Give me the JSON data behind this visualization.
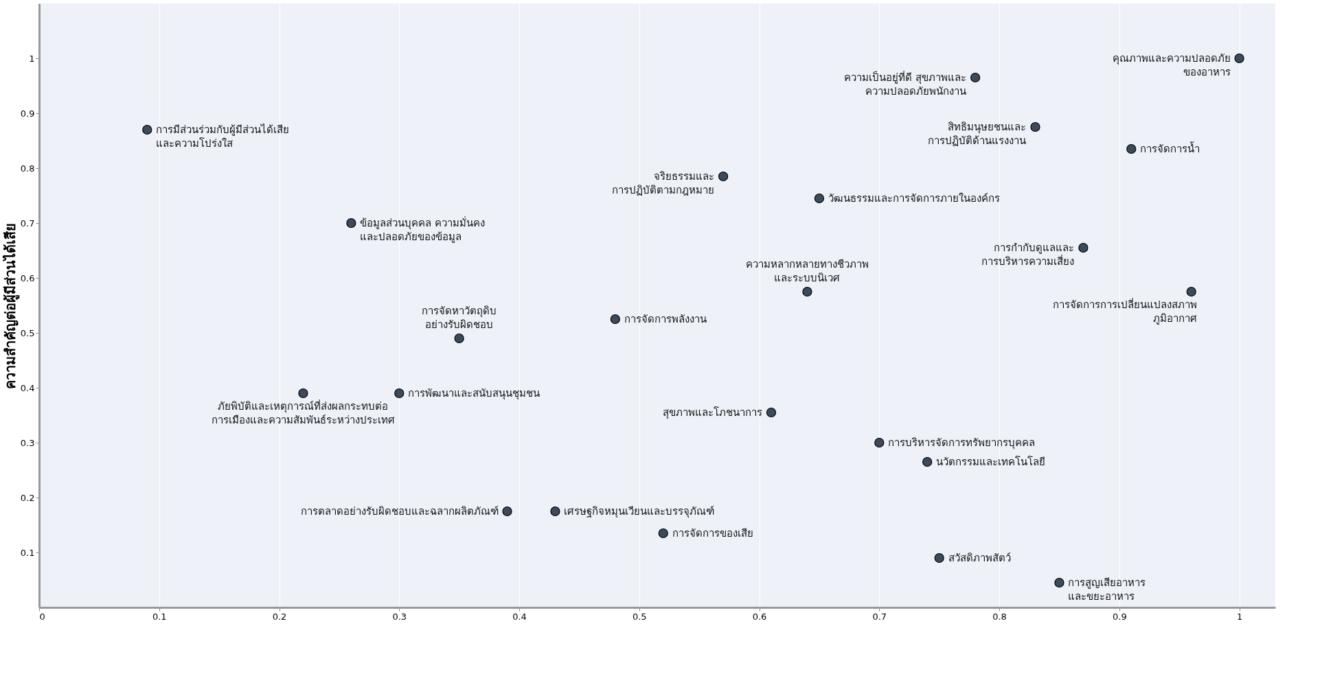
{
  "chart_data": {
    "type": "scatter",
    "ylabel": "ความสำคัญต่อผู้มีส่วนได้เสีย",
    "x": [
      0.09,
      0.26,
      0.22,
      0.3,
      0.35,
      0.39,
      0.43,
      0.48,
      0.52,
      0.57,
      0.61,
      0.64,
      0.65,
      0.7,
      0.74,
      0.75,
      0.78,
      0.83,
      0.85,
      0.87,
      0.91,
      0.96,
      1.0
    ],
    "series": [
      {
        "color": "#3d4a5c",
        "values": [
          0.87,
          0.7,
          0.39,
          0.39,
          0.49,
          0.175,
          0.175,
          0.525,
          0.135,
          0.785,
          0.355,
          0.575,
          0.745,
          0.3,
          0.265,
          0.09,
          0.965,
          0.875,
          0.045,
          0.655,
          0.835,
          0.575,
          1.0
        ]
      }
    ],
    "xlim": [
      0,
      1.03
    ],
    "ylim": [
      0,
      1.1
    ],
    "xticks": [
      0,
      0.1,
      0.2,
      0.3,
      0.4,
      0.5,
      0.6,
      0.7,
      0.8,
      0.9,
      1
    ],
    "yticks": [
      0.1,
      0.2,
      0.3,
      0.4,
      0.5,
      0.6,
      0.7,
      0.8,
      0.9,
      1
    ],
    "grid": "x",
    "marker": "circle",
    "annotations": [
      {
        "text": "การมีส่วนร่วมกับผู้มีส่วนได้เสีย\nและความโปร่งใส",
        "x": 0.09,
        "y": 0.87
      },
      {
        "text": "ข้อมูลส่วนบุคคล ความมั่นคง\nและปลอดภัยของข้อมูล",
        "x": 0.26,
        "y": 0.7
      },
      {
        "text": "ภัยพิบัติและเหตุการณ์ที่ส่งผลกระทบต่อ\nการเมืองและความสัมพันธ์ระหว่างประเทศ",
        "x": 0.22,
        "y": 0.39
      },
      {
        "text": "การพัฒนาและสนับสนุนชุมชน",
        "x": 0.3,
        "y": 0.39
      },
      {
        "text": "การจัดหาวัตถุดิบ\nอย่างรับผิดชอบ",
        "x": 0.35,
        "y": 0.49
      },
      {
        "text": "การตลาดอย่างรับผิดชอบและฉลากผลิตภัณฑ์",
        "x": 0.39,
        "y": 0.175
      },
      {
        "text": "เศรษฐกิจหมุนเวียนและบรรจุภัณฑ์",
        "x": 0.43,
        "y": 0.175
      },
      {
        "text": "การจัดการพลังงาน",
        "x": 0.48,
        "y": 0.525
      },
      {
        "text": "การจัดการของเสีย",
        "x": 0.52,
        "y": 0.135
      },
      {
        "text": "จริยธรรมและ\nการปฏิบัติตามกฎหมาย",
        "x": 0.57,
        "y": 0.785
      },
      {
        "text": "สุขภาพและโภชนาการ",
        "x": 0.61,
        "y": 0.355
      },
      {
        "text": "ความหลากหลายทางชีวภาพ\nและระบบนิเวศ",
        "x": 0.64,
        "y": 0.575
      },
      {
        "text": "วัฒนธรรมและการจัดการภายในองค์กร",
        "x": 0.65,
        "y": 0.745
      },
      {
        "text": "การบริหารจัดการทรัพยากรบุคคล",
        "x": 0.7,
        "y": 0.3
      },
      {
        "text": "นวัตกรรมและเทคโนโลยี",
        "x": 0.74,
        "y": 0.265
      },
      {
        "text": "สวัสดิภาพสัตว์",
        "x": 0.75,
        "y": 0.09
      },
      {
        "text": "ความเป็นอยู่ที่ดี สุขภาพและ\nความปลอดภัยพนักงาน",
        "x": 0.78,
        "y": 0.965
      },
      {
        "text": "สิทธิมนุษยชนและ\nการปฏิบัติด้านแรงงาน",
        "x": 0.83,
        "y": 0.875
      },
      {
        "text": "การสูญเสียอาหาร\nและขยะอาหาร",
        "x": 0.85,
        "y": 0.045
      },
      {
        "text": "การกำกับดูแลและ\nการบริหารความเสี่ยง",
        "x": 0.87,
        "y": 0.655
      },
      {
        "text": "การจัดการน้ำ",
        "x": 0.91,
        "y": 0.835
      },
      {
        "text": "การจัดการการเปลี่ยนแปลงสภาพ\nภูมิอากาศ",
        "x": 0.96,
        "y": 0.575
      },
      {
        "text": "คุณภาพและความปลอดภัย\nของอาหาร",
        "x": 1.0,
        "y": 1.0
      }
    ]
  }
}
